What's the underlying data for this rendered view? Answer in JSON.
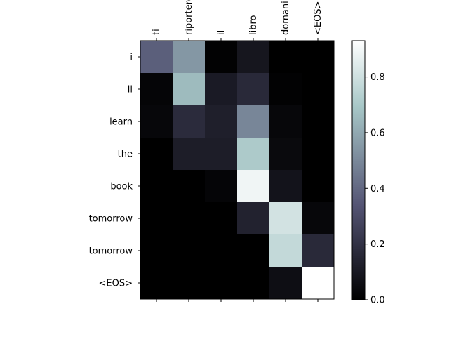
{
  "chart_data": {
    "type": "heatmap",
    "x_tick_labels": [
      "ti",
      "riporterò",
      "il",
      "libro",
      "domani",
      "<EOS>"
    ],
    "y_tick_labels": [
      "i",
      "ll",
      "learn",
      "the",
      "book",
      "tomorrow",
      "tomorrow",
      "<EOS>"
    ],
    "x_tick_position": "top",
    "grid": false,
    "colormap": "bone",
    "values": [
      [
        0.38,
        0.55,
        0.01,
        0.09,
        0.0,
        0.0
      ],
      [
        0.02,
        0.66,
        0.11,
        0.17,
        0.01,
        0.0
      ],
      [
        0.03,
        0.18,
        0.13,
        0.5,
        0.03,
        0.0
      ],
      [
        0.0,
        0.12,
        0.12,
        0.71,
        0.04,
        0.0
      ],
      [
        0.0,
        0.0,
        0.02,
        0.89,
        0.08,
        0.0
      ],
      [
        0.0,
        0.0,
        0.0,
        0.14,
        0.81,
        0.03
      ],
      [
        0.0,
        0.0,
        0.0,
        0.0,
        0.77,
        0.17
      ],
      [
        0.0,
        0.0,
        0.0,
        0.0,
        0.06,
        0.93
      ]
    ],
    "colorbar": {
      "vmin": 0.0,
      "vmax": 0.93,
      "ticks": [
        0.0,
        0.2,
        0.4,
        0.6,
        0.8
      ],
      "tick_labels": [
        "0.0",
        "0.2",
        "0.4",
        "0.6",
        "0.8"
      ]
    }
  }
}
